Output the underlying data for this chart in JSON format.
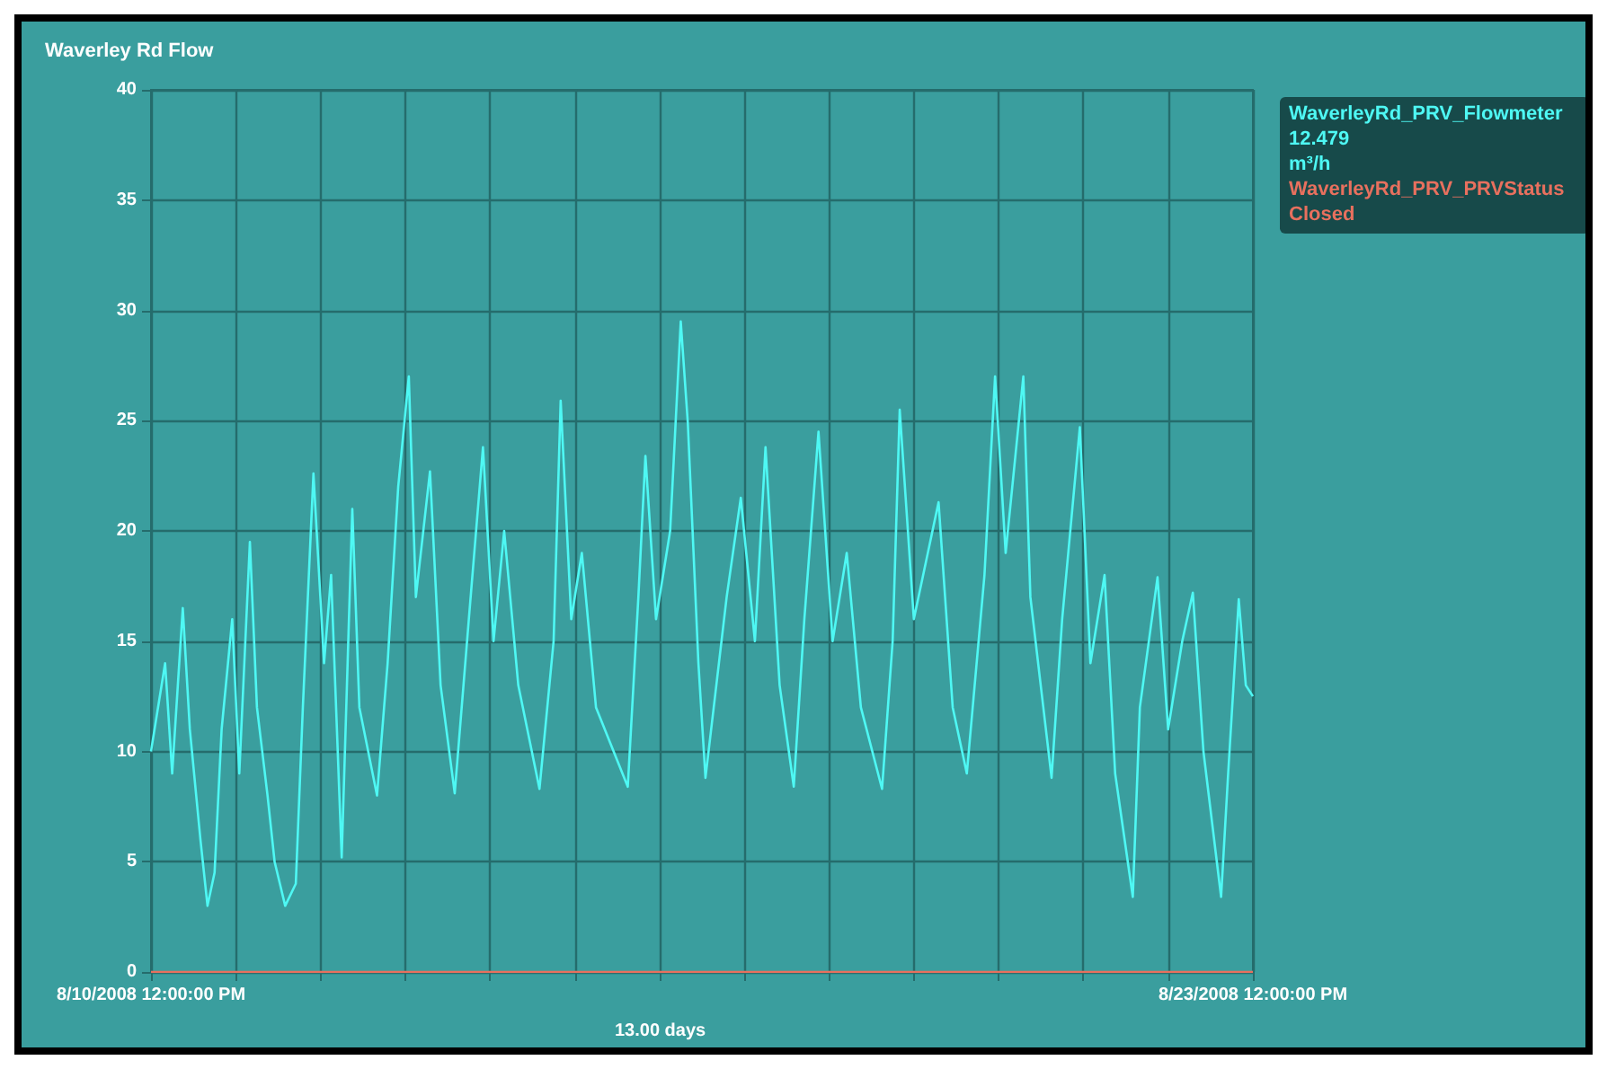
{
  "chart_data": {
    "type": "line",
    "title": "Waverley Rd Flow",
    "x": [
      "2008-08-10T12:00",
      "2008-08-10T16:00",
      "2008-08-10T18:00",
      "2008-08-10T21:00",
      "2008-08-10T23:00",
      "2008-08-11T02:00",
      "2008-08-11T04:00",
      "2008-08-11T06:00",
      "2008-08-11T08:00",
      "2008-08-11T11:00",
      "2008-08-11T13:00",
      "2008-08-11T16:00",
      "2008-08-11T18:00",
      "2008-08-11T21:00",
      "2008-08-11T23:00",
      "2008-08-12T02:00",
      "2008-08-12T05:00",
      "2008-08-12T07:00",
      "2008-08-12T10:00",
      "2008-08-12T13:00",
      "2008-08-12T15:00",
      "2008-08-12T18:00",
      "2008-08-12T21:00",
      "2008-08-12T23:00",
      "2008-08-13T04:00",
      "2008-08-13T07:00",
      "2008-08-13T10:00",
      "2008-08-13T13:00",
      "2008-08-13T15:00",
      "2008-08-13T19:00",
      "2008-08-13T22:00",
      "2008-08-14T02:00",
      "2008-08-14T06:00",
      "2008-08-14T10:00",
      "2008-08-14T13:00",
      "2008-08-14T16:00",
      "2008-08-14T20:00",
      "2008-08-15T02:00",
      "2008-08-15T06:00",
      "2008-08-15T08:00",
      "2008-08-15T11:00",
      "2008-08-15T14:00",
      "2008-08-15T18:00",
      "2008-08-16T03:00",
      "2008-08-16T06:00",
      "2008-08-16T08:00",
      "2008-08-16T11:00",
      "2008-08-16T15:00",
      "2008-08-16T18:00",
      "2008-08-16T20:00",
      "2008-08-16T23:00",
      "2008-08-17T01:00",
      "2008-08-17T07:00",
      "2008-08-17T11:00",
      "2008-08-17T15:00",
      "2008-08-17T18:00",
      "2008-08-17T22:00",
      "2008-08-18T02:00",
      "2008-08-18T05:00",
      "2008-08-18T09:00",
      "2008-08-18T13:00",
      "2008-08-18T17:00",
      "2008-08-18T21:00",
      "2008-08-19T03:00",
      "2008-08-19T06:00",
      "2008-08-19T08:00",
      "2008-08-19T12:00",
      "2008-08-19T19:00",
      "2008-08-19T23:00",
      "2008-08-20T03:00",
      "2008-08-20T08:00",
      "2008-08-20T11:00",
      "2008-08-20T14:00",
      "2008-08-20T19:00",
      "2008-08-20T21:00",
      "2008-08-21T03:00",
      "2008-08-21T06:00",
      "2008-08-21T11:00",
      "2008-08-21T14:00",
      "2008-08-21T18:00",
      "2008-08-21T21:00",
      "2008-08-22T02:00",
      "2008-08-22T04:00",
      "2008-08-22T09:00",
      "2008-08-22T12:00",
      "2008-08-22T16:00",
      "2008-08-22T19:00",
      "2008-08-22T22:00",
      "2008-08-23T03:00",
      "2008-08-23T05:00",
      "2008-08-23T08:00",
      "2008-08-23T10:00",
      "2008-08-23T12:00"
    ],
    "series": [
      {
        "name": "WaverleyRd_PRV_Flowmeter",
        "color": "#4ef8f4",
        "values": [
          10,
          14,
          9,
          16.5,
          11,
          6,
          3,
          4.5,
          11,
          16,
          9,
          19.5,
          12,
          8,
          5,
          3,
          4,
          12,
          22.6,
          14,
          18,
          5.2,
          21,
          12,
          8,
          14,
          22,
          27,
          17,
          22.7,
          13,
          8.1,
          16,
          23.8,
          15,
          20,
          13,
          8.3,
          15,
          25.9,
          16,
          19,
          12,
          8.4,
          17,
          23.4,
          16,
          20,
          29.5,
          24.9,
          14,
          8.8,
          17,
          21.5,
          15,
          23.8,
          13,
          8.4,
          16,
          24.5,
          15,
          19,
          12,
          8.3,
          15,
          25.5,
          16,
          21.3,
          12,
          9,
          18,
          27,
          19,
          27,
          17,
          8.8,
          16,
          24.7,
          14,
          18,
          9,
          3.4,
          12,
          17.9,
          11,
          15,
          17.2,
          10,
          3.4,
          9,
          16.9,
          13,
          12.5
        ]
      },
      {
        "name": "WaverleyRd_PRV_PRVStatus",
        "color": "#e8705e",
        "x": [
          "2008-08-10T12:00",
          "2008-08-23T12:00"
        ],
        "values": [
          0,
          0
        ]
      }
    ],
    "ylim": [
      0,
      40
    ],
    "yticks": [
      0,
      5,
      10,
      15,
      20,
      25,
      30,
      35,
      40
    ],
    "xlim": [
      "2008-08-10T12:00",
      "2008-08-23T12:00"
    ],
    "xticks": [
      {
        "value": "2008-08-10T12:00",
        "label": "8/10/2008 12:00:00 PM"
      },
      {
        "value": "2008-08-11T12:00",
        "label": null
      },
      {
        "value": "2008-08-12T12:00",
        "label": null
      },
      {
        "value": "2008-08-13T12:00",
        "label": null
      },
      {
        "value": "2008-08-14T12:00",
        "label": null
      },
      {
        "value": "2008-08-15T12:00",
        "label": null
      },
      {
        "value": "2008-08-16T12:00",
        "label": null
      },
      {
        "value": "2008-08-17T12:00",
        "label": null
      },
      {
        "value": "2008-08-18T12:00",
        "label": null
      },
      {
        "value": "2008-08-19T12:00",
        "label": null
      },
      {
        "value": "2008-08-20T12:00",
        "label": null
      },
      {
        "value": "2008-08-21T12:00",
        "label": null
      },
      {
        "value": "2008-08-22T12:00",
        "label": null
      },
      {
        "value": "2008-08-23T12:00",
        "label": "8/23/2008 12:00:00 PM"
      }
    ],
    "annotations": [
      "12.479",
      "m³/h",
      "Closed",
      "13.00 days"
    ],
    "grid": true,
    "legend": "top right"
  }
}
